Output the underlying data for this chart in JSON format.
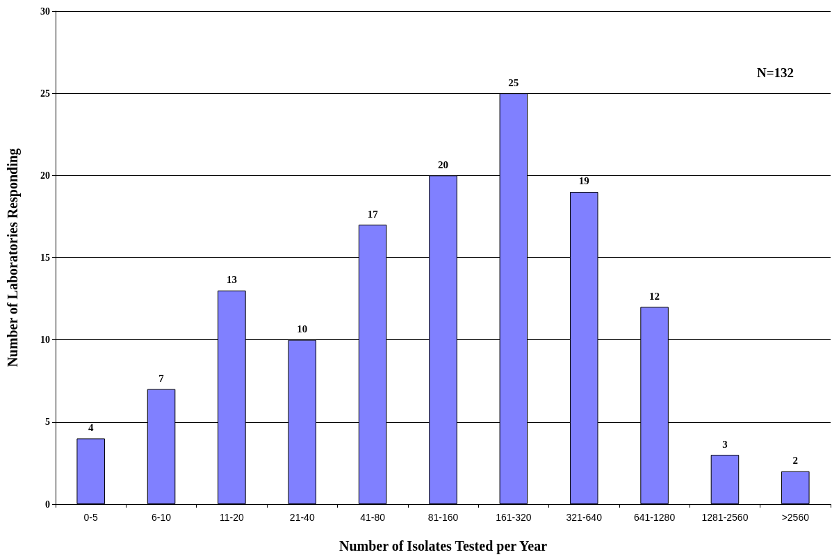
{
  "chart_data": {
    "type": "bar",
    "xlabel": "Number of Isolates Tested per Year",
    "ylabel": "Number of Laboratories Responding",
    "categories": [
      "0-5",
      "6-10",
      "11-20",
      "21-40",
      "41-80",
      "81-160",
      "161-320",
      "321-640",
      "641-1280",
      "1281-2560",
      ">2560"
    ],
    "values": [
      4,
      7,
      13,
      10,
      17,
      20,
      25,
      19,
      12,
      3,
      2
    ],
    "color": "#8080ff",
    "ylim": [
      0,
      30
    ],
    "yticks": [
      0,
      5,
      10,
      15,
      20,
      25,
      30
    ],
    "grid": "y",
    "data_labels": true,
    "annotations": [
      "N=132"
    ]
  }
}
